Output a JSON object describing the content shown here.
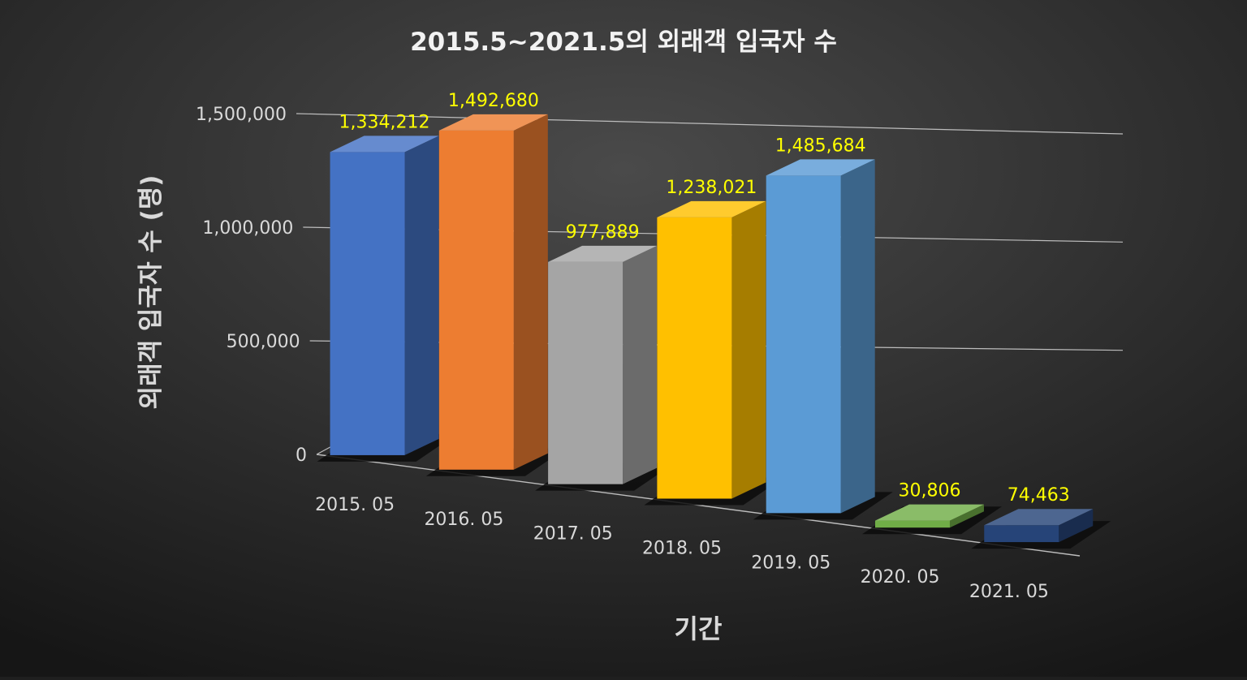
{
  "chart_data": {
    "type": "bar",
    "title": "2015.5~2021.5의 외래객 입국자 수",
    "xlabel": "기간",
    "ylabel": "외래객 입국자 수 (명)",
    "categories": [
      "2015. 05",
      "2016. 05",
      "2017. 05",
      "2018. 05",
      "2019. 05",
      "2020. 05",
      "2021. 05"
    ],
    "values": [
      1334212,
      1492680,
      977889,
      1238021,
      1485684,
      30806,
      74463
    ],
    "data_labels": [
      "1,334,212",
      "1,492,680",
      "977,889",
      "1,238,021",
      "1,485,684",
      "30,806",
      "74,463"
    ],
    "ytick_values": [
      0,
      500000,
      1000000,
      1500000
    ],
    "ytick_labels": [
      "0",
      "500,000",
      "1,000,000",
      "1,500,000"
    ],
    "ylim": [
      0,
      1500000
    ],
    "grid": true,
    "legend": "none",
    "style": "3d-column",
    "colors": [
      "#4472C4",
      "#ED7D31",
      "#A5A5A5",
      "#FFC000",
      "#5B9BD5",
      "#70AD47",
      "#264478"
    ],
    "background": "#1f1f1f",
    "data_label_color": "#FFFF00",
    "text_color": "#D9D9D9"
  }
}
